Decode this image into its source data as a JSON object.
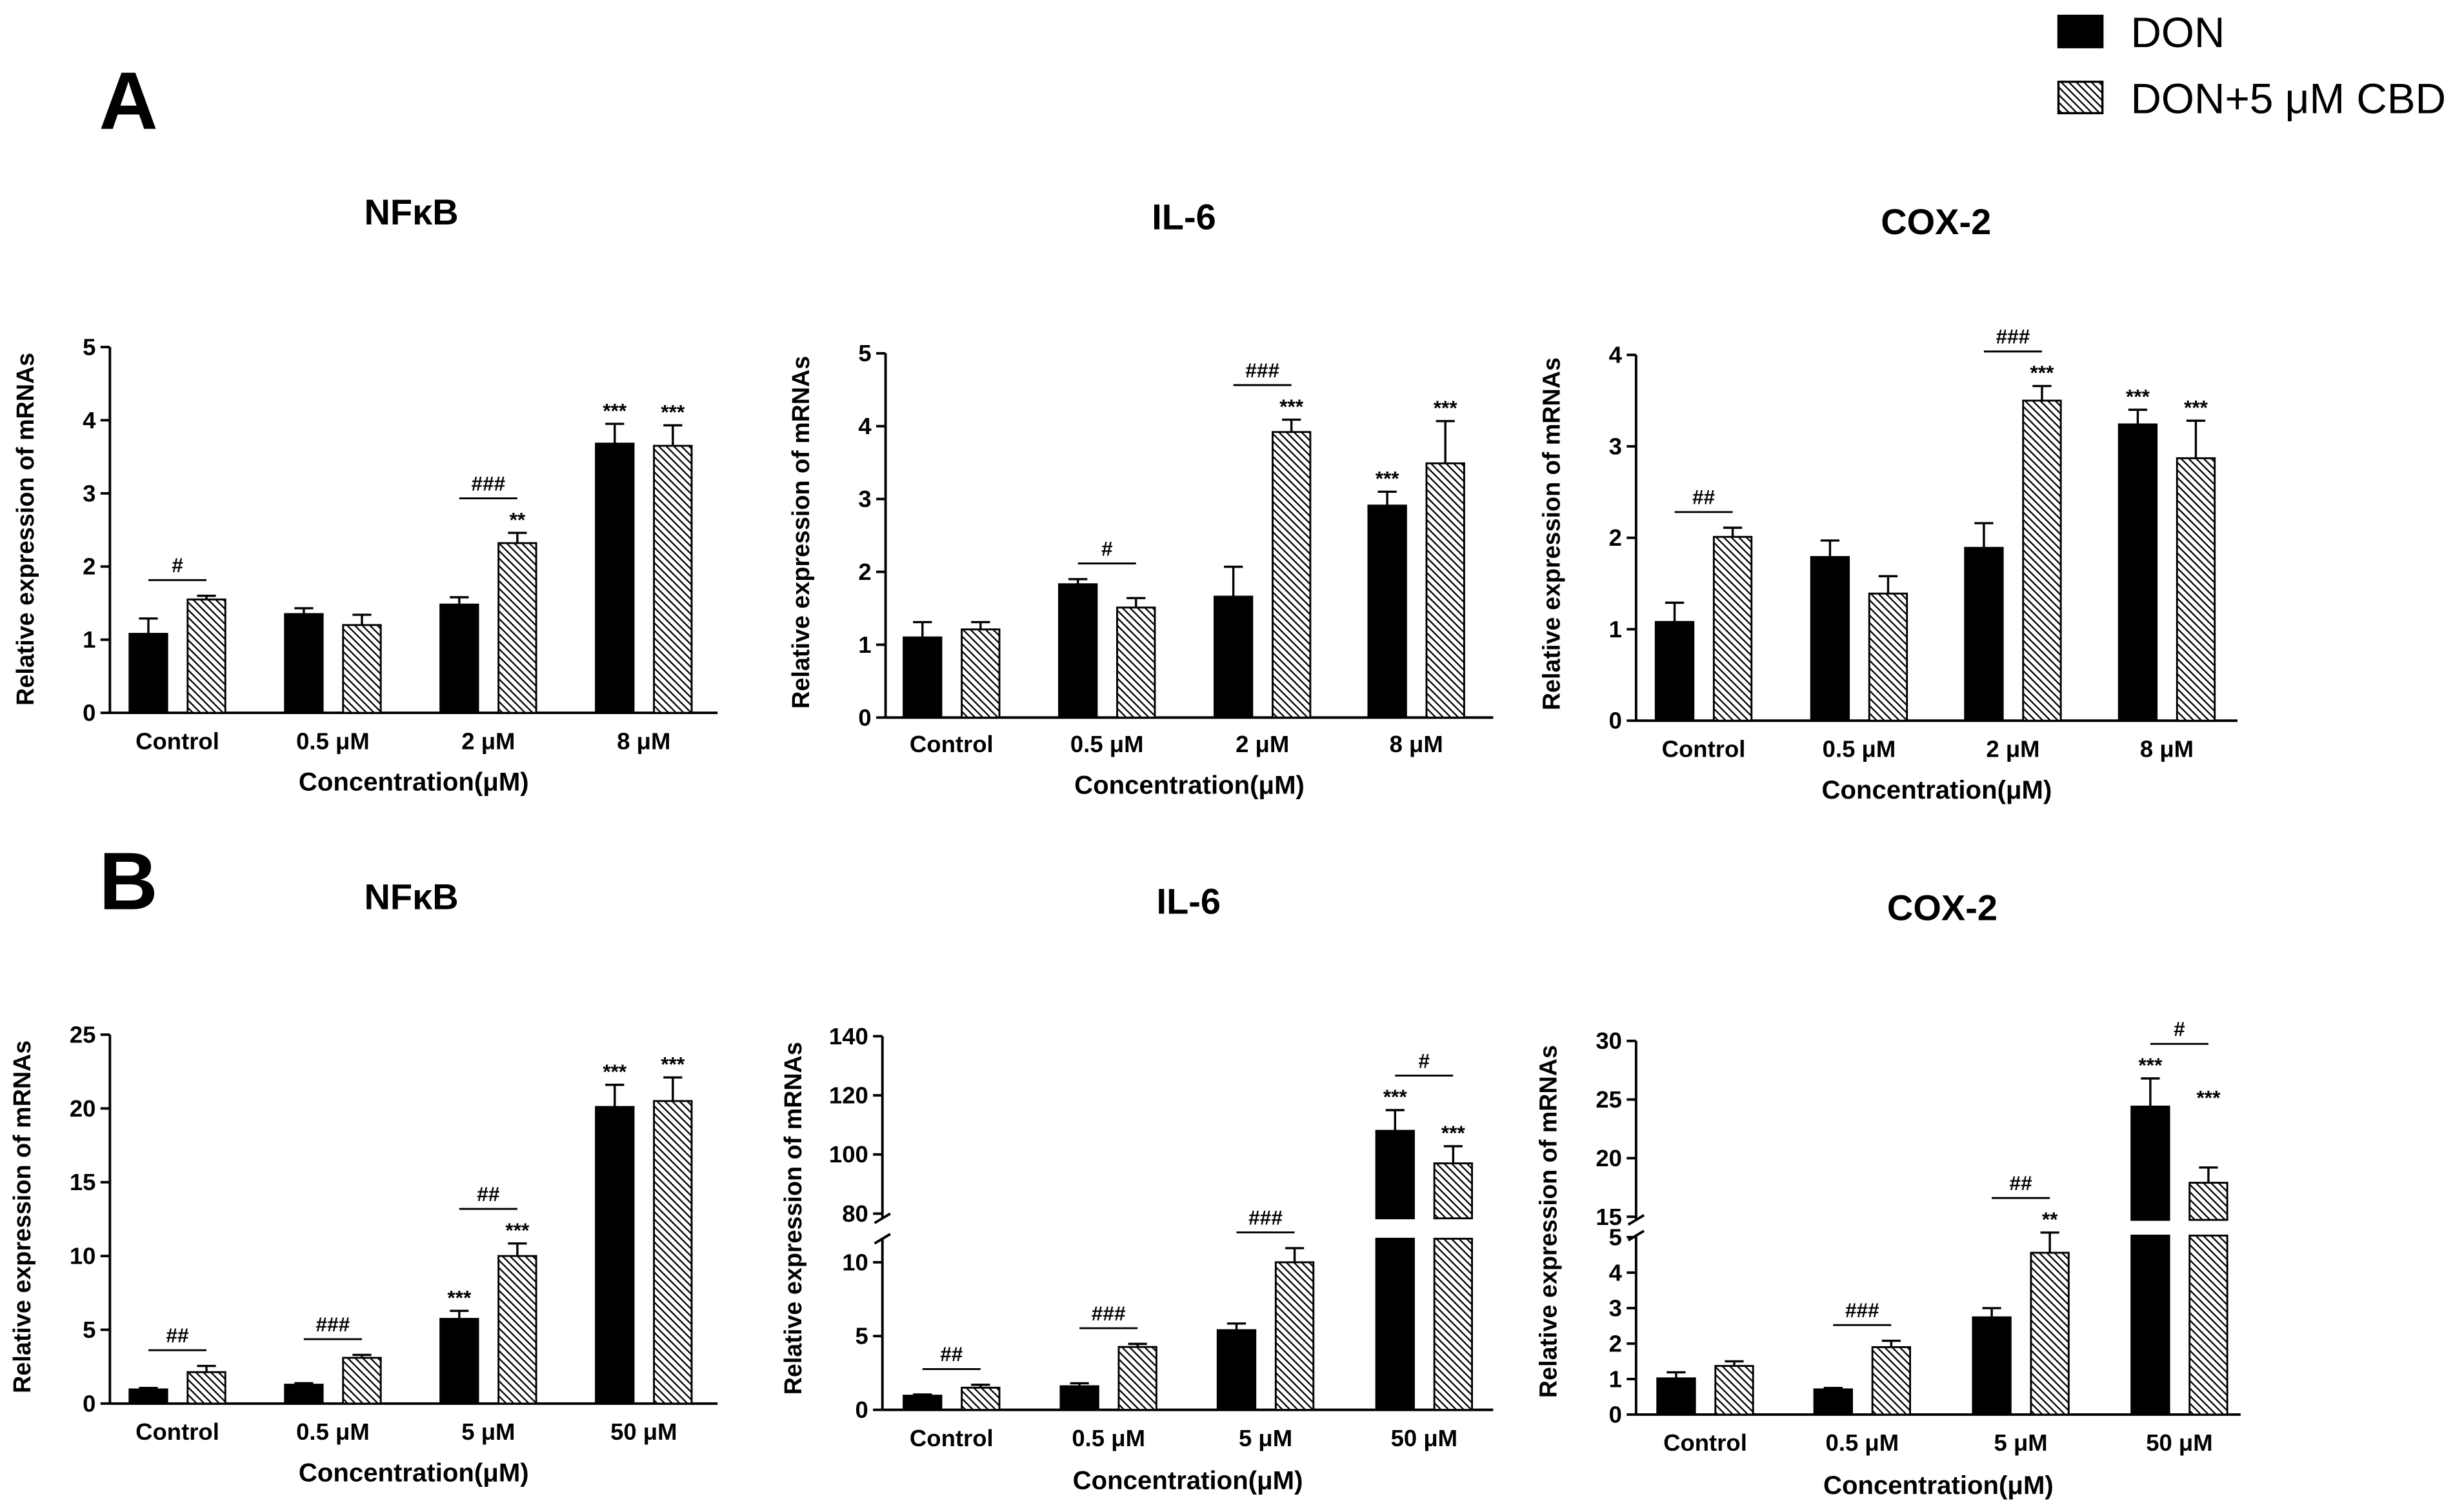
{
  "panels": [
    {
      "label": "A"
    },
    {
      "label": "B"
    }
  ],
  "legend": [
    {
      "label": "DON",
      "color": "#000000",
      "hatched": false
    },
    {
      "label": "DON+5 μM CBD",
      "color": "#000000",
      "hatched": true
    }
  ],
  "chart_data": [
    {
      "type": "bar",
      "title": "NFκB",
      "xlabel": "Concentration(μM)",
      "ylabel": "Relative expression of mRNAs",
      "categories": [
        "Control",
        "0.5 μM",
        "2 μM",
        "8 μM"
      ],
      "ylim": [
        0,
        5
      ],
      "y_segments": [
        {
          "range": [
            0,
            5
          ],
          "ticks": [
            0,
            1,
            2,
            3,
            4,
            5
          ]
        }
      ],
      "series": [
        {
          "name": "DON",
          "color": "#000000",
          "hatched": false,
          "values": [
            1.08,
            1.35,
            1.48,
            3.68
          ],
          "errors": [
            0.21,
            0.08,
            0.1,
            0.27
          ],
          "significance": [
            null,
            null,
            null,
            "***"
          ]
        },
        {
          "name": "DON+5 μM CBD",
          "color": "#000000",
          "hatched": true,
          "values": [
            1.55,
            1.2,
            2.32,
            3.65
          ],
          "errors": [
            0.05,
            0.14,
            0.14,
            0.28
          ],
          "significance": [
            null,
            null,
            "**",
            "***"
          ]
        }
      ],
      "comparisons": [
        {
          "category_index": 0,
          "label": "#"
        },
        {
          "category_index": 2,
          "label": "###"
        }
      ]
    },
    {
      "type": "bar",
      "title": "IL-6",
      "xlabel": "Concentration(μM)",
      "ylabel": "Relative expression of mRNAs",
      "categories": [
        "Control",
        "0.5 μM",
        "2 μM",
        "8 μM"
      ],
      "ylim": [
        0,
        5
      ],
      "y_segments": [
        {
          "range": [
            0,
            5
          ],
          "ticks": [
            0,
            1,
            2,
            3,
            4,
            5
          ]
        }
      ],
      "series": [
        {
          "name": "DON",
          "color": "#000000",
          "hatched": false,
          "values": [
            1.1,
            1.83,
            1.66,
            2.91
          ],
          "errors": [
            0.21,
            0.07,
            0.41,
            0.19
          ],
          "significance": [
            null,
            null,
            null,
            "***"
          ]
        },
        {
          "name": "DON+5 μM CBD",
          "color": "#000000",
          "hatched": true,
          "values": [
            1.21,
            1.51,
            3.92,
            3.49
          ],
          "errors": [
            0.1,
            0.13,
            0.17,
            0.58
          ],
          "significance": [
            null,
            null,
            "***",
            "***"
          ]
        }
      ],
      "comparisons": [
        {
          "category_index": 1,
          "label": "#"
        },
        {
          "category_index": 2,
          "label": "###"
        }
      ]
    },
    {
      "type": "bar",
      "title": "COX-2",
      "xlabel": "Concentration(μM)",
      "ylabel": "Relative expression of mRNAs",
      "categories": [
        "Control",
        "0.5 μM",
        "2 μM",
        "8 μM"
      ],
      "ylim": [
        0,
        4
      ],
      "y_segments": [
        {
          "range": [
            0,
            4
          ],
          "ticks": [
            0,
            1,
            2,
            3,
            4
          ]
        }
      ],
      "series": [
        {
          "name": "DON",
          "color": "#000000",
          "hatched": false,
          "values": [
            1.08,
            1.79,
            1.89,
            3.24
          ],
          "errors": [
            0.21,
            0.18,
            0.27,
            0.16
          ],
          "significance": [
            null,
            null,
            null,
            "***"
          ]
        },
        {
          "name": "DON+5 μM CBD",
          "color": "#000000",
          "hatched": true,
          "values": [
            2.01,
            1.39,
            3.5,
            2.87
          ],
          "errors": [
            0.1,
            0.19,
            0.16,
            0.41
          ],
          "significance": [
            null,
            null,
            "***",
            "***"
          ]
        }
      ],
      "comparisons": [
        {
          "category_index": 0,
          "label": "##"
        },
        {
          "category_index": 2,
          "label": "###"
        }
      ]
    },
    {
      "type": "bar",
      "title": "NFκB",
      "xlabel": "Concentration(μM)",
      "ylabel": "Relative expression of mRNAs",
      "categories": [
        "Control",
        "0.5 μM",
        "5 μM",
        "50 μM"
      ],
      "ylim": [
        0,
        25
      ],
      "y_segments": [
        {
          "range": [
            0,
            25
          ],
          "ticks": [
            0,
            5,
            10,
            15,
            20,
            25
          ]
        }
      ],
      "series": [
        {
          "name": "DON",
          "color": "#000000",
          "hatched": false,
          "values": [
            0.96,
            1.28,
            5.74,
            20.1
          ],
          "errors": [
            0.1,
            0.1,
            0.54,
            1.5
          ],
          "significance": [
            null,
            null,
            "***",
            "***"
          ]
        },
        {
          "name": "DON+5 μM CBD",
          "color": "#000000",
          "hatched": true,
          "values": [
            2.13,
            3.1,
            10.0,
            20.5
          ],
          "errors": [
            0.42,
            0.2,
            0.85,
            1.6
          ],
          "significance": [
            null,
            null,
            "***",
            "***"
          ]
        }
      ],
      "comparisons": [
        {
          "category_index": 0,
          "label": "##"
        },
        {
          "category_index": 1,
          "label": "###"
        },
        {
          "category_index": 2,
          "label": "##"
        }
      ]
    },
    {
      "type": "bar",
      "title": "IL-6",
      "xlabel": "Concentration(μM)",
      "ylabel": "Relative expression of mRNAs",
      "categories": [
        "Control",
        "0.5 μM",
        "5 μM",
        "50 μM"
      ],
      "ylim": [
        0,
        140
      ],
      "y_segments": [
        {
          "range": [
            0,
            10
          ],
          "ticks": [
            0,
            5,
            10
          ]
        },
        {
          "range": [
            80,
            140
          ],
          "ticks": [
            80,
            100,
            120,
            140
          ]
        }
      ],
      "series": [
        {
          "name": "DON",
          "color": "#000000",
          "hatched": false,
          "values": [
            0.96,
            1.6,
            5.4,
            108
          ],
          "errors": [
            0.08,
            0.2,
            0.45,
            7
          ],
          "significance": [
            null,
            null,
            null,
            "***"
          ]
        },
        {
          "name": "DON+5 μM CBD",
          "color": "#000000",
          "hatched": true,
          "values": [
            1.5,
            4.26,
            10.0,
            97
          ],
          "errors": [
            0.2,
            0.21,
            0.96,
            5.8
          ],
          "significance": [
            null,
            null,
            null,
            "***"
          ]
        }
      ],
      "comparisons": [
        {
          "category_index": 0,
          "label": "##"
        },
        {
          "category_index": 1,
          "label": "###"
        },
        {
          "category_index": 2,
          "label": "###"
        },
        {
          "category_index": 3,
          "label": "#"
        }
      ]
    },
    {
      "type": "bar",
      "title": "COX-2",
      "xlabel": "Concentration(μM)",
      "ylabel": "Relative expression of mRNAs",
      "categories": [
        "Control",
        "0.5 μM",
        "5 μM",
        "50 μM"
      ],
      "ylim": [
        0,
        30
      ],
      "y_segments": [
        {
          "range": [
            0,
            5
          ],
          "ticks": [
            0,
            1,
            2,
            3,
            4,
            5
          ]
        },
        {
          "range": [
            15,
            30
          ],
          "ticks": [
            15,
            20,
            25,
            30
          ]
        }
      ],
      "series": [
        {
          "name": "DON",
          "color": "#000000",
          "hatched": false,
          "values": [
            1.02,
            0.71,
            2.74,
            24.4
          ],
          "errors": [
            0.17,
            0.04,
            0.26,
            2.4
          ],
          "significance": [
            null,
            null,
            null,
            "***"
          ]
        },
        {
          "name": "DON+5 μM CBD",
          "color": "#000000",
          "hatched": true,
          "values": [
            1.37,
            1.9,
            4.56,
            17.9
          ],
          "errors": [
            0.13,
            0.18,
            0.57,
            1.3
          ],
          "significance": [
            null,
            null,
            "**",
            "***"
          ]
        }
      ],
      "comparisons": [
        {
          "category_index": 1,
          "label": "###"
        },
        {
          "category_index": 2,
          "label": "##"
        },
        {
          "category_index": 3,
          "label": "#"
        }
      ]
    }
  ]
}
